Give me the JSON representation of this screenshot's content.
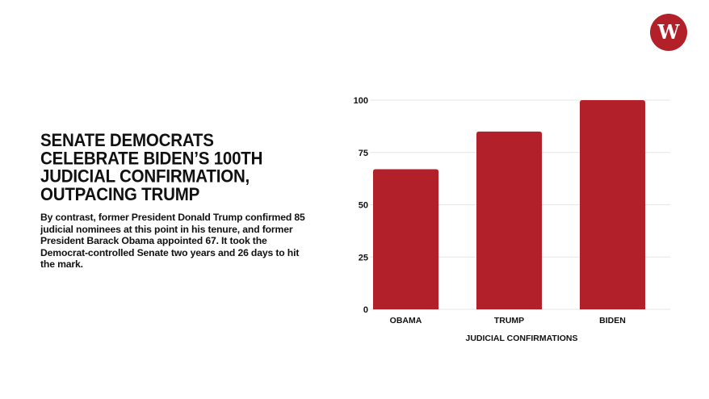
{
  "brand": {
    "logo_icon": "washington-examiner-w-logo",
    "logo_letter": "W",
    "color": "#b22029"
  },
  "headline": "SENATE DEMOCRATS CELEBRATE BIDEN’S 100TH JUDICIAL CONFIRMATION, OUTPACING TRUMP",
  "body": "By contrast, former President Donald Trump confirmed 85 judicial nominees at this point in his tenure, and former President Barack Obama appointed 67. It took the Democrat-controlled Senate two years and 26 days to hit the mark.",
  "chart_data": {
    "type": "bar",
    "categories": [
      "OBAMA",
      "TRUMP",
      "BIDEN"
    ],
    "values": [
      67,
      85,
      100
    ],
    "xlabel": "JUDICIAL CONFIRMATIONS",
    "ylabel": "",
    "ylim": [
      0,
      100
    ],
    "yticks": [
      0,
      25,
      50,
      75,
      100
    ],
    "grid": true,
    "legend": "none",
    "bar_color": "#b22029",
    "grid_color": "#e6e6e6"
  }
}
